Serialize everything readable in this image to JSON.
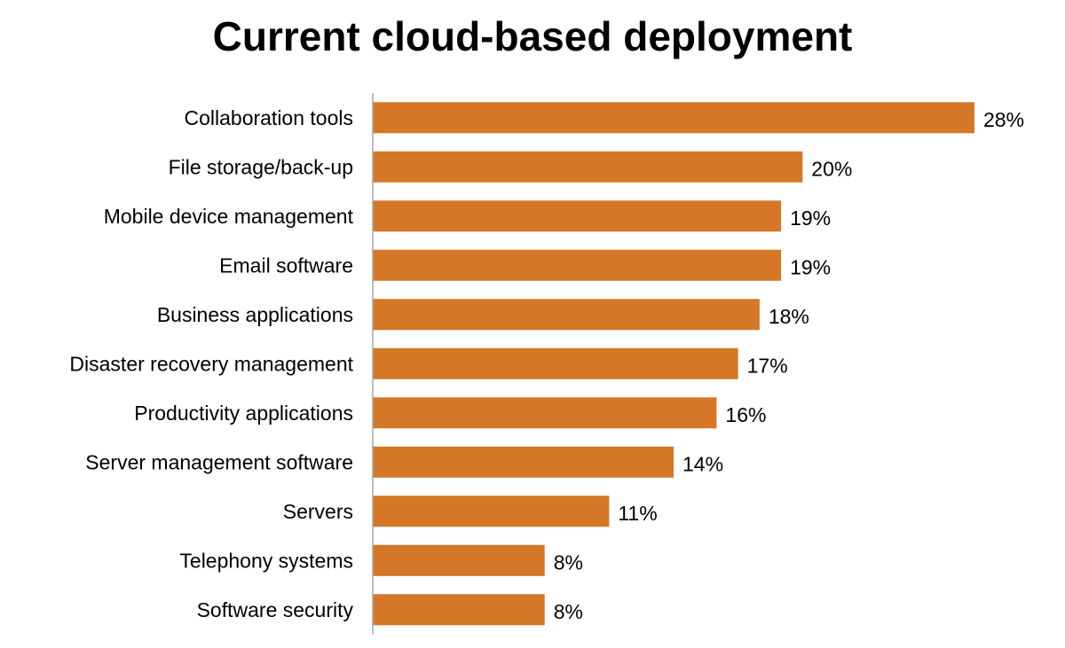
{
  "chart_data": {
    "type": "bar",
    "orientation": "horizontal",
    "title": "Current cloud-based deployment",
    "xlabel": "",
    "ylabel": "",
    "categories": [
      "Collaboration tools",
      "File storage/back-up",
      "Mobile device management",
      "Email software",
      "Business applications",
      "Disaster recovery management",
      "Productivity applications",
      "Server management software",
      "Servers",
      "Telephony systems",
      "Software security"
    ],
    "values": [
      28,
      20,
      19,
      19,
      18,
      17,
      16,
      14,
      11,
      8,
      8
    ],
    "value_labels": [
      "28%",
      "20%",
      "19%",
      "19%",
      "18%",
      "17%",
      "16%",
      "14%",
      "11%",
      "8%",
      "8%"
    ],
    "xlim": [
      0,
      28
    ],
    "grid": false,
    "legend": "none",
    "bar_color": "#D47726",
    "axis_color": "#A6A6A6"
  }
}
